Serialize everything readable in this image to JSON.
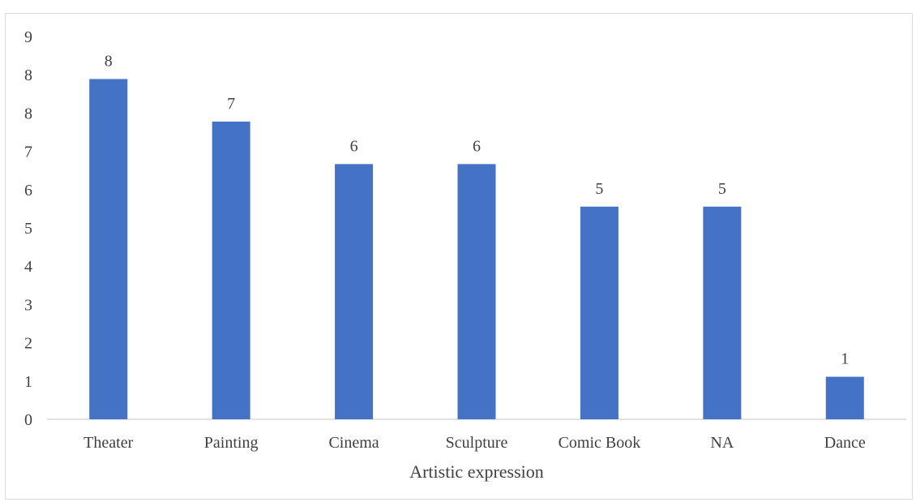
{
  "chart_data": {
    "type": "bar",
    "categories": [
      "Theater",
      "Painting",
      "Cinema",
      "Sculpture",
      "Comic Book",
      "NA",
      "Dance"
    ],
    "values": [
      8,
      7,
      6,
      6,
      5,
      5,
      1
    ],
    "y_tick_labels": [
      "0",
      "1",
      "2",
      "3",
      "4",
      "5",
      "6",
      "7",
      "8",
      "8",
      "9"
    ],
    "xlabel": "Artistic expression",
    "ylabel": "",
    "ylim": [
      0,
      9
    ],
    "grid": false,
    "legend": "none",
    "bar_color": "#4472c4"
  }
}
